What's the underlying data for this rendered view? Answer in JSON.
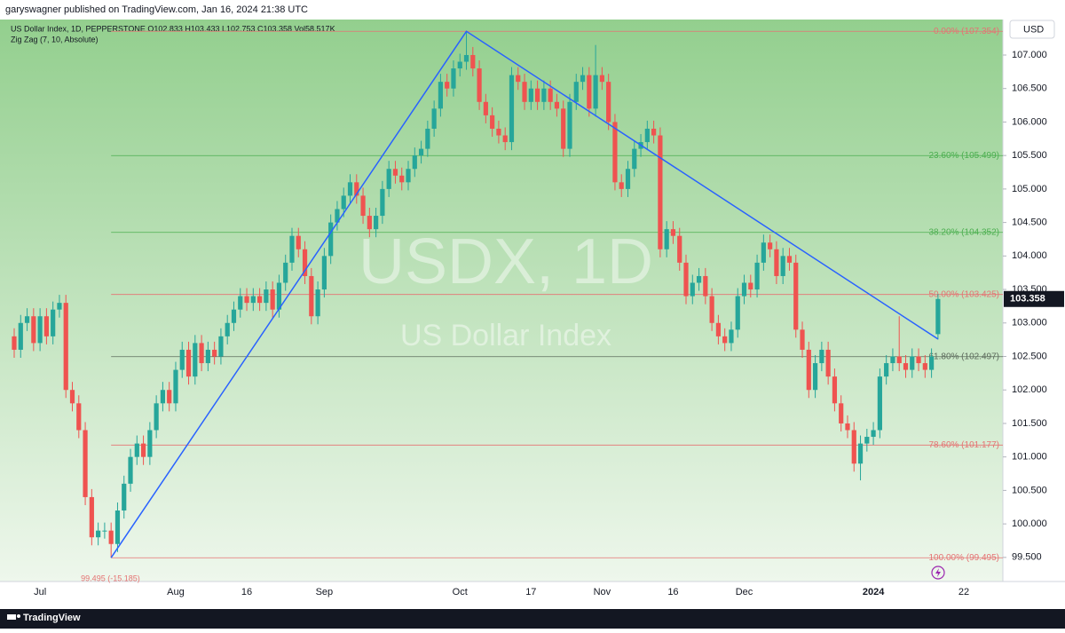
{
  "chart_data": {
    "type": "candlestick",
    "header": "garyswagner published on TradingView.com, Jan 16, 2024 21:38 UTC",
    "title": "US Dollar Index, 1D, PEPPERSTONE  O102.833  H103.433  L102.753  C103.358  Vol58.517K",
    "subtitle": "Zig Zag (7, 10, Absolute)",
    "watermark": "USDX, 1D",
    "watermark_sub": "US Dollar Index",
    "currency": "USD",
    "brand": "TradingView",
    "up_color": "#26a69a",
    "down_color": "#ef5350",
    "grid": false,
    "categories": [
      null,
      null,
      null,
      null,
      "Jul",
      null,
      null,
      null,
      null,
      null,
      null,
      null,
      null,
      null,
      null,
      null,
      null,
      null,
      null,
      null,
      null,
      null,
      null,
      null,
      null,
      "Aug",
      null,
      null,
      null,
      null,
      null,
      null,
      null,
      null,
      null,
      null,
      "16",
      null,
      null,
      null,
      null,
      null,
      null,
      null,
      null,
      null,
      null,
      null,
      "Sep",
      null,
      null,
      null,
      null,
      null,
      null,
      null,
      null,
      null,
      null,
      null,
      null,
      null,
      null,
      null,
      null,
      null,
      null,
      null,
      null,
      "Oct",
      null,
      null,
      null,
      null,
      null,
      null,
      null,
      null,
      null,
      null,
      "17",
      null,
      null,
      null,
      null,
      null,
      null,
      null,
      null,
      null,
      null,
      "Nov",
      null,
      null,
      null,
      null,
      null,
      null,
      null,
      null,
      null,
      null,
      "16",
      null,
      null,
      null,
      null,
      null,
      null,
      null,
      null,
      null,
      null,
      "Dec",
      null,
      null,
      null,
      null,
      null,
      null,
      null,
      null,
      null,
      null,
      null,
      null,
      null,
      null,
      null,
      null,
      null,
      null,
      null,
      "2024",
      null,
      null,
      null,
      null,
      null,
      null,
      null,
      null,
      null,
      null,
      null,
      null,
      null,
      "22"
    ],
    "open": [
      102.8,
      102.6,
      103.0,
      103.1,
      102.7,
      103.1,
      102.8,
      103.2,
      103.3,
      102.0,
      101.8,
      101.4,
      100.4,
      99.8,
      99.9,
      99.9,
      99.7,
      100.2,
      100.6,
      101.0,
      101.2,
      101.0,
      101.4,
      101.8,
      102.0,
      101.8,
      102.3,
      102.6,
      102.2,
      102.7,
      102.4,
      102.6,
      102.5,
      102.8,
      103.0,
      103.2,
      103.4,
      103.3,
      103.4,
      103.3,
      103.5,
      103.2,
      103.6,
      103.9,
      104.3,
      104.1,
      103.7,
      103.1,
      103.5,
      104.0,
      104.5,
      104.7,
      104.9,
      105.1,
      104.9,
      104.6,
      104.4,
      104.6,
      105.0,
      105.3,
      105.2,
      105.1,
      105.3,
      105.5,
      105.6,
      105.9,
      106.2,
      106.6,
      106.5,
      106.8,
      106.9,
      107.0,
      106.8,
      106.3,
      106.1,
      105.9,
      105.8,
      105.7,
      106.7,
      106.6,
      106.3,
      106.5,
      106.3,
      106.5,
      106.3,
      106.2,
      105.6,
      106.3,
      106.6,
      106.7,
      106.2,
      106.7,
      106.6,
      106.0,
      105.1,
      105.0,
      105.3,
      105.6,
      105.7,
      105.9,
      105.8,
      104.1,
      104.4,
      104.3,
      103.9,
      103.4,
      103.6,
      103.7,
      103.4,
      103.0,
      102.8,
      102.7,
      102.9,
      103.4,
      103.6,
      103.5,
      103.9,
      104.2,
      104.1,
      103.7,
      104.0,
      103.9,
      102.9,
      102.6,
      102.0,
      102.4,
      102.6,
      102.2,
      101.8,
      101.5,
      101.4,
      100.9,
      101.2,
      101.3,
      101.4,
      102.2,
      102.4,
      102.5,
      102.4,
      102.3,
      102.5,
      102.4,
      102.3,
      102.833,
      null,
      null,
      null,
      null
    ],
    "high": [
      102.92,
      103.12,
      103.22,
      103.22,
      103.22,
      103.22,
      103.32,
      103.42,
      103.42,
      102.12,
      101.92,
      101.52,
      100.52,
      100.02,
      100.02,
      100.02,
      100.32,
      100.72,
      101.12,
      101.32,
      101.32,
      101.52,
      101.92,
      102.12,
      102.12,
      102.42,
      102.72,
      102.72,
      102.82,
      102.82,
      102.72,
      102.72,
      102.92,
      103.12,
      103.32,
      103.52,
      103.52,
      103.52,
      103.52,
      103.62,
      103.62,
      103.72,
      104.02,
      104.42,
      104.42,
      104.22,
      103.82,
      103.62,
      104.12,
      104.62,
      104.82,
      105.02,
      105.22,
      105.22,
      105.02,
      104.72,
      104.72,
      105.12,
      105.42,
      105.42,
      105.32,
      105.42,
      105.62,
      105.72,
      106.02,
      106.32,
      106.72,
      106.72,
      106.92,
      107.02,
      107.354,
      107.12,
      106.92,
      106.42,
      106.22,
      106.02,
      105.92,
      106.82,
      106.82,
      106.72,
      106.62,
      106.62,
      106.62,
      106.62,
      106.42,
      106.32,
      106.42,
      106.72,
      106.82,
      106.82,
      107.15,
      106.82,
      106.72,
      106.12,
      105.22,
      105.42,
      105.72,
      105.82,
      106.02,
      106.02,
      105.92,
      104.52,
      104.52,
      104.42,
      104.02,
      103.72,
      103.82,
      103.82,
      103.52,
      103.12,
      102.92,
      103.02,
      103.52,
      103.72,
      103.72,
      104.02,
      104.32,
      104.32,
      104.22,
      104.12,
      104.12,
      104.02,
      103.02,
      102.72,
      102.52,
      102.72,
      102.72,
      102.32,
      101.92,
      101.62,
      101.52,
      101.32,
      101.42,
      101.52,
      102.32,
      102.52,
      102.62,
      103.1,
      102.52,
      102.62,
      102.62,
      102.52,
      102.62,
      103.433,
      null,
      null,
      null,
      null
    ],
    "low": [
      102.48,
      102.48,
      102.88,
      102.58,
      102.58,
      102.68,
      102.68,
      103.08,
      101.88,
      101.68,
      101.28,
      100.28,
      99.68,
      99.68,
      99.78,
      99.495,
      99.58,
      100.08,
      100.48,
      100.88,
      100.88,
      100.88,
      101.28,
      101.68,
      101.68,
      101.68,
      102.18,
      102.08,
      102.08,
      102.28,
      102.28,
      102.38,
      102.38,
      102.68,
      102.88,
      103.08,
      103.18,
      103.18,
      103.18,
      103.18,
      103.08,
      103.08,
      103.48,
      103.78,
      103.98,
      103.58,
      102.98,
      102.98,
      103.38,
      103.88,
      104.38,
      104.58,
      104.78,
      104.78,
      104.48,
      104.28,
      104.28,
      104.48,
      104.88,
      105.08,
      104.98,
      104.98,
      105.18,
      105.38,
      105.48,
      105.78,
      106.08,
      106.38,
      106.38,
      106.68,
      106.78,
      106.68,
      106.18,
      105.98,
      105.78,
      105.68,
      105.58,
      105.58,
      106.48,
      106.18,
      106.18,
      106.18,
      106.18,
      106.18,
      106.08,
      105.48,
      105.48,
      106.18,
      106.48,
      106.08,
      106.08,
      106.48,
      105.88,
      104.98,
      104.88,
      104.88,
      105.18,
      105.48,
      105.58,
      105.68,
      103.98,
      103.98,
      104.18,
      103.78,
      103.28,
      103.28,
      103.48,
      103.28,
      102.88,
      102.68,
      102.58,
      102.58,
      102.78,
      103.28,
      103.38,
      103.38,
      103.78,
      103.98,
      103.58,
      103.58,
      103.78,
      102.78,
      102.48,
      101.88,
      101.88,
      102.28,
      102.08,
      101.68,
      101.38,
      101.28,
      100.78,
      100.65,
      101.08,
      101.18,
      101.28,
      102.08,
      102.28,
      102.28,
      102.18,
      102.18,
      102.28,
      102.18,
      102.18,
      102.753,
      null,
      null,
      null,
      null
    ],
    "close": [
      102.6,
      103.0,
      103.1,
      102.7,
      103.1,
      102.8,
      103.2,
      103.3,
      102.0,
      101.8,
      101.4,
      100.4,
      99.8,
      99.9,
      99.9,
      99.7,
      100.2,
      100.6,
      101.0,
      101.2,
      101.0,
      101.4,
      101.8,
      102.0,
      101.8,
      102.3,
      102.6,
      102.2,
      102.7,
      102.4,
      102.6,
      102.5,
      102.8,
      103.0,
      103.2,
      103.4,
      103.3,
      103.4,
      103.3,
      103.5,
      103.2,
      103.6,
      103.9,
      104.3,
      104.1,
      103.7,
      103.1,
      103.5,
      104.0,
      104.5,
      104.7,
      104.9,
      105.1,
      104.9,
      104.6,
      104.4,
      104.6,
      105.0,
      105.3,
      105.2,
      105.1,
      105.3,
      105.5,
      105.6,
      105.9,
      106.2,
      106.6,
      106.5,
      106.8,
      106.9,
      107.0,
      106.8,
      106.3,
      106.1,
      105.9,
      105.8,
      105.7,
      106.7,
      106.6,
      106.3,
      106.5,
      106.3,
      106.5,
      106.3,
      106.2,
      105.6,
      106.3,
      106.6,
      106.7,
      106.2,
      106.7,
      106.6,
      106.0,
      105.1,
      105.0,
      105.3,
      105.6,
      105.7,
      105.9,
      105.8,
      104.1,
      104.4,
      104.3,
      103.9,
      103.4,
      103.6,
      103.7,
      103.4,
      103.0,
      102.8,
      102.7,
      102.9,
      103.4,
      103.6,
      103.5,
      103.9,
      104.2,
      104.1,
      103.7,
      104.0,
      103.9,
      102.9,
      102.6,
      102.0,
      102.4,
      102.6,
      102.2,
      101.8,
      101.5,
      101.4,
      100.9,
      101.2,
      101.3,
      101.4,
      102.2,
      102.4,
      102.5,
      102.4,
      102.3,
      102.5,
      102.4,
      102.3,
      102.5,
      103.358,
      null,
      null,
      null,
      null
    ],
    "ylim": [
      99.14,
      107.53
    ],
    "yticks": [
      {
        "value": 99.5,
        "label": "99.500"
      },
      {
        "value": 100,
        "label": "100.000"
      },
      {
        "value": 100.5,
        "label": "100.500"
      },
      {
        "value": 101,
        "label": "101.000"
      },
      {
        "value": 101.5,
        "label": "101.500"
      },
      {
        "value": 102,
        "label": "102.000"
      },
      {
        "value": 102.5,
        "label": "102.500"
      },
      {
        "value": 103,
        "label": "103.000"
      },
      {
        "value": 103.5,
        "label": "103.500"
      },
      {
        "value": 104,
        "label": "104.000"
      },
      {
        "value": 104.5,
        "label": "104.500"
      },
      {
        "value": 105,
        "label": "105.000"
      },
      {
        "value": 105.5,
        "label": "105.500"
      },
      {
        "value": 106,
        "label": "106.000"
      },
      {
        "value": 106.5,
        "label": "106.500"
      },
      {
        "value": 107,
        "label": "107.000"
      }
    ],
    "fib_levels": [
      {
        "label": "0.00% (107.354)",
        "value": 107.354,
        "color": "#e57373"
      },
      {
        "label": "23.60% (105.499)",
        "value": 105.499,
        "color": "#4caf50"
      },
      {
        "label": "38.20% (104.352)",
        "value": 104.352,
        "color": "#4caf50"
      },
      {
        "label": "50.00% (103.425)",
        "value": 103.425,
        "color": "#e57373"
      },
      {
        "label": "61.80% (102.497)",
        "value": 102.497,
        "color": "#5d6b5d"
      },
      {
        "label": "78.60% (101.177)",
        "value": 101.177,
        "color": "#e57373"
      },
      {
        "label": "100.00% (99.495)",
        "value": 99.495,
        "color": "#e57373"
      }
    ],
    "zigzag": {
      "x": [
        15,
        70,
        143
      ],
      "values": [
        99.495,
        107.354,
        102.76
      ],
      "color": "#2962ff",
      "label": "99.495 (-15.185)"
    }
  }
}
